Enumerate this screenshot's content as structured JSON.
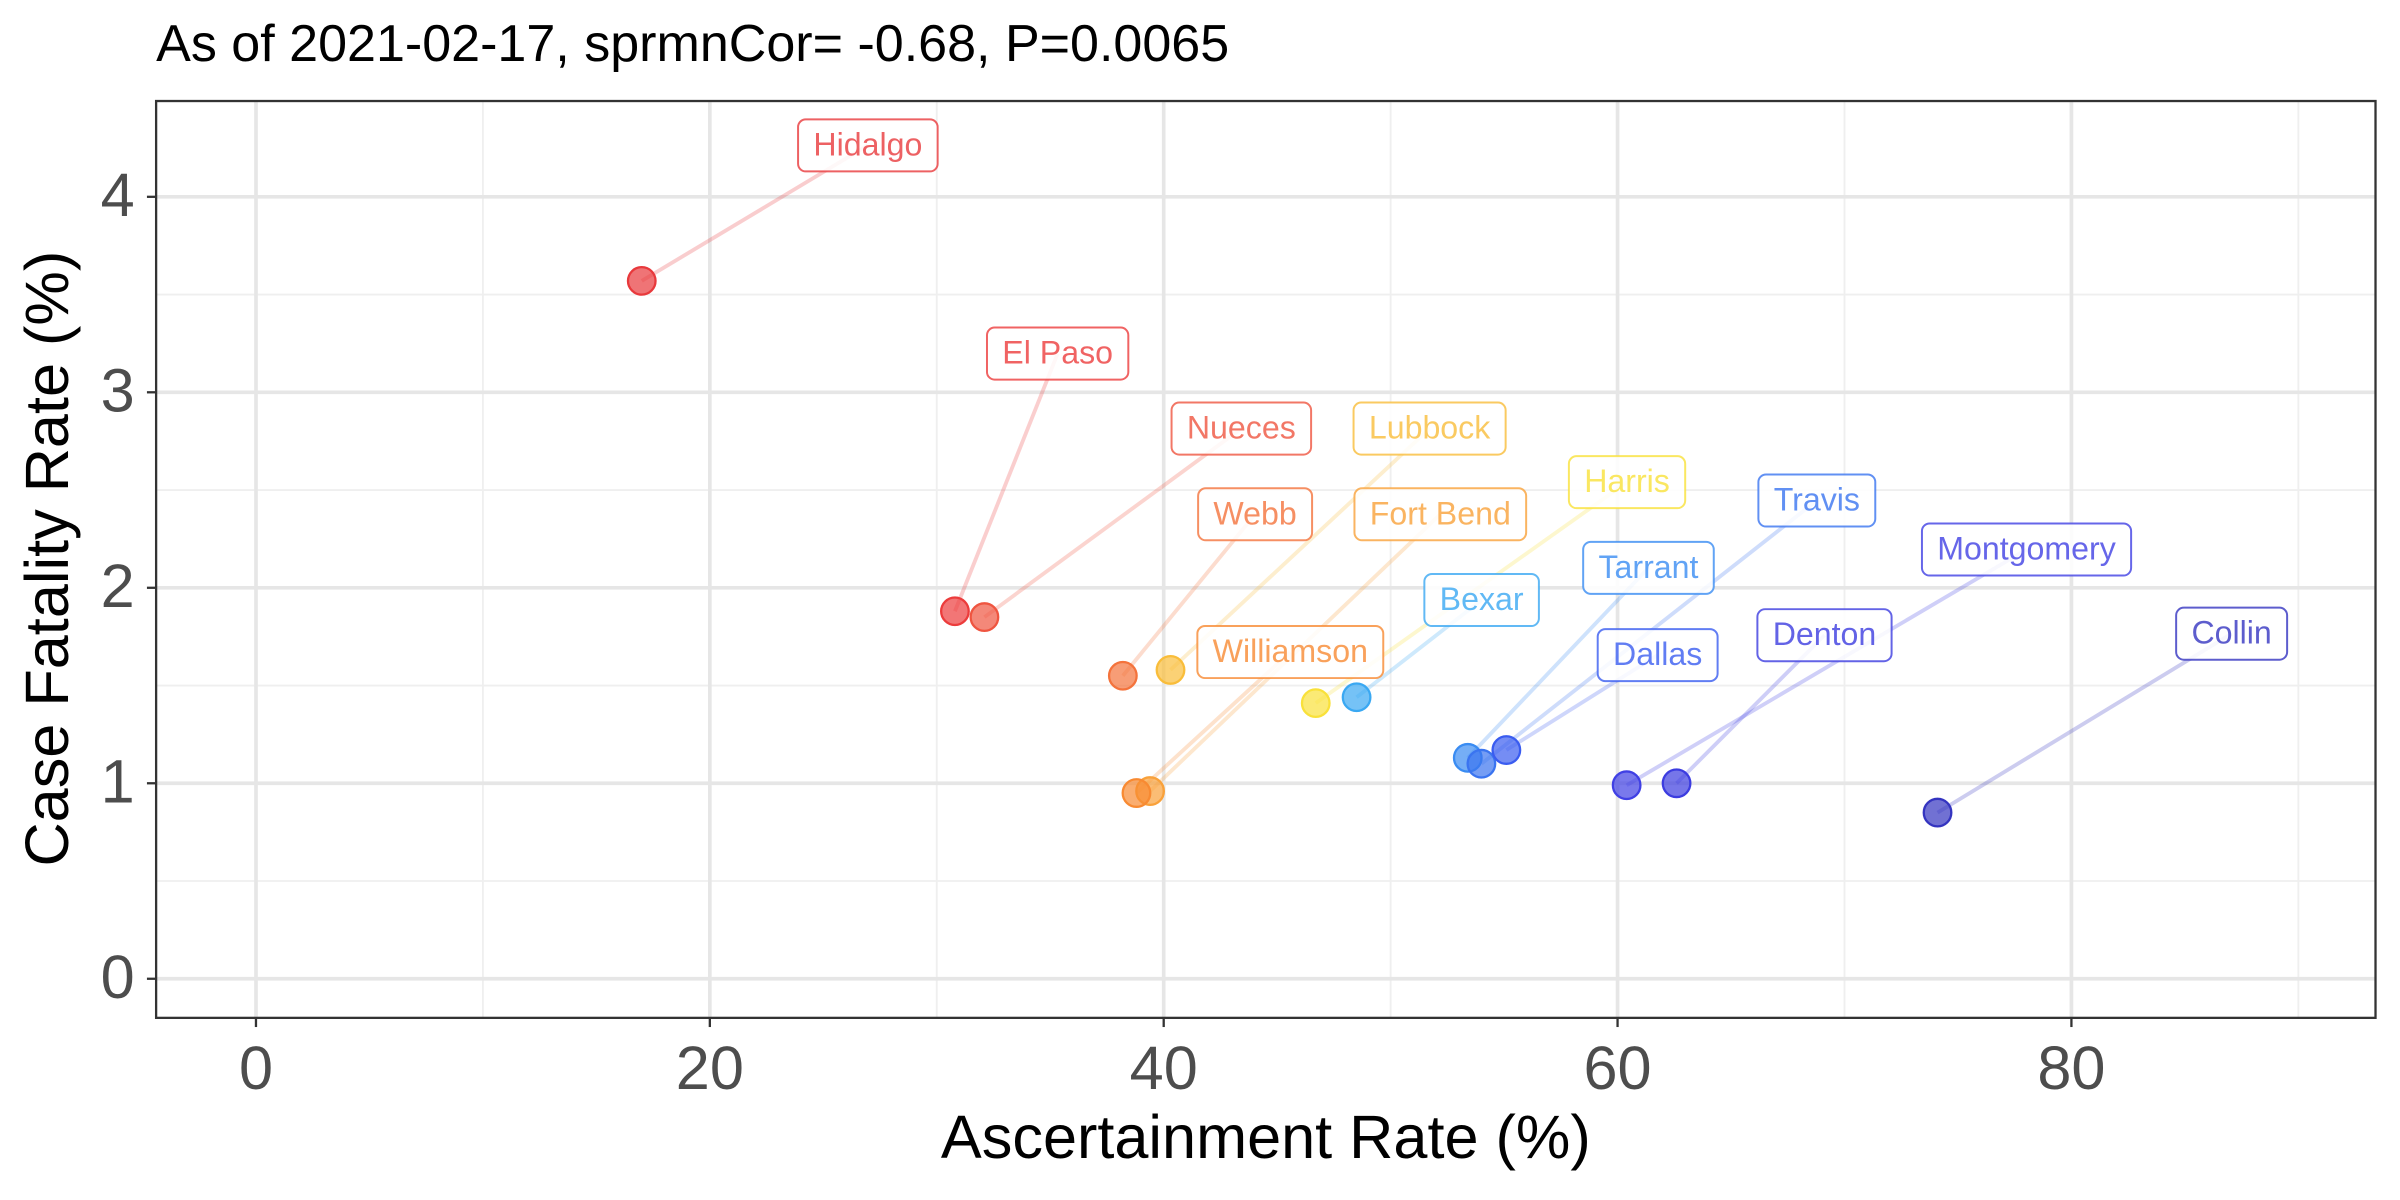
{
  "chart_data": {
    "type": "scatter",
    "title": "As of 2021-02-17, sprmnCor= -0.68, P=0.0065",
    "x_label": "Ascertainment Rate (%)",
    "y_label": "Case Fatality Rate (%)",
    "xlim": [
      -4.4,
      93.4
    ],
    "ylim": [
      -0.2,
      4.49
    ],
    "xticks": [
      0,
      20,
      40,
      60,
      80
    ],
    "yticks": [
      0,
      1,
      2,
      3,
      4
    ],
    "grid": true,
    "series": [
      {
        "name": "Hidalgo",
        "color": "#e8393c",
        "x": [
          17.0
        ],
        "values": [
          3.57
        ]
      },
      {
        "name": "El Paso",
        "color": "#ec3c3c",
        "x": [
          30.8
        ],
        "values": [
          1.88
        ]
      },
      {
        "name": "Nueces",
        "color": "#ef5540",
        "x": [
          32.1
        ],
        "values": [
          1.85
        ]
      },
      {
        "name": "Webb",
        "color": "#f4733c",
        "x": [
          38.2
        ],
        "values": [
          1.55
        ]
      },
      {
        "name": "Lubbock",
        "color": "#f9bd3a",
        "x": [
          40.3
        ],
        "values": [
          1.58
        ]
      },
      {
        "name": "Harris",
        "color": "#f9e13a",
        "x": [
          46.7
        ],
        "values": [
          1.41
        ]
      },
      {
        "name": "Fort Bend",
        "color": "#f9a13a",
        "x": [
          39.4
        ],
        "values": [
          0.96
        ]
      },
      {
        "name": "Williamson",
        "color": "#f88a32",
        "x": [
          38.8
        ],
        "values": [
          0.95
        ]
      },
      {
        "name": "Bexar",
        "color": "#3aa8f2",
        "x": [
          48.5
        ],
        "values": [
          1.44
        ]
      },
      {
        "name": "Tarrant",
        "color": "#3a8cf2",
        "x": [
          53.4
        ],
        "values": [
          1.13
        ]
      },
      {
        "name": "Travis",
        "color": "#3a74f0",
        "x": [
          54.0
        ],
        "values": [
          1.1
        ]
      },
      {
        "name": "Dallas",
        "color": "#3a5cf0",
        "x": [
          55.1
        ],
        "values": [
          1.17
        ]
      },
      {
        "name": "Montgomery",
        "color": "#4040e4",
        "x": [
          60.4
        ],
        "values": [
          0.99
        ]
      },
      {
        "name": "Denton",
        "color": "#3c3ce0",
        "x": [
          62.6
        ],
        "values": [
          1.0
        ]
      },
      {
        "name": "Collin",
        "color": "#3434c0",
        "x": [
          74.1
        ],
        "values": [
          0.85
        ]
      }
    ]
  }
}
